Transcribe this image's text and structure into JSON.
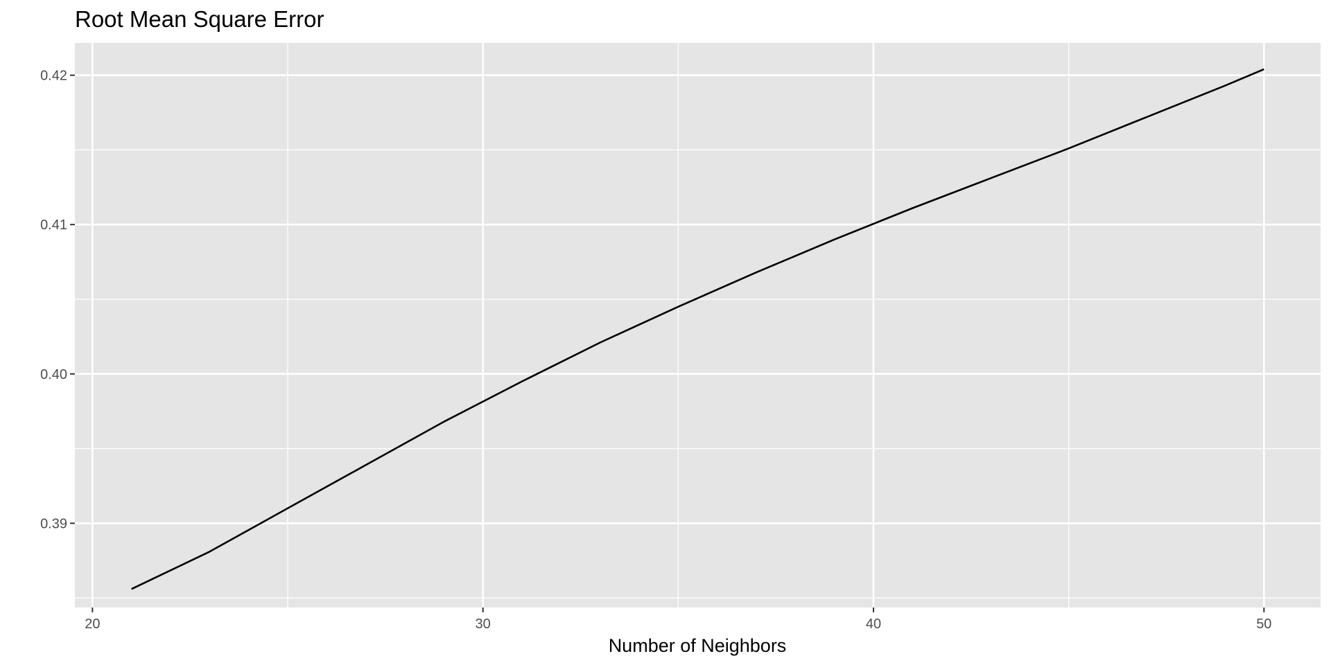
{
  "chart_data": {
    "type": "line",
    "title": "Root Mean Square Error",
    "xlabel": "Number of Neighbors",
    "ylabel": "",
    "x_ticks": [
      20,
      30,
      40,
      50
    ],
    "x_tick_labels": [
      "20",
      "30",
      "40",
      "50"
    ],
    "y_ticks": [
      0.39,
      0.4,
      0.41,
      0.42
    ],
    "y_tick_labels": [
      "0.39",
      "0.40",
      "0.41",
      "0.42"
    ],
    "xlim": [
      19.55,
      51.45
    ],
    "ylim": [
      0.38436,
      0.42216
    ],
    "grid": true,
    "legend": "none",
    "series": [
      {
        "color": "#000000",
        "x": [
          21,
          23,
          25,
          27,
          29,
          31,
          33,
          35,
          37,
          39,
          41,
          43,
          45,
          47,
          49,
          50
        ],
        "y": [
          0.3856,
          0.3881,
          0.391,
          0.3939,
          0.3968,
          0.3995,
          0.4021,
          0.4045,
          0.4068,
          0.409,
          0.4111,
          0.4131,
          0.4151,
          0.4172,
          0.4193,
          0.4204
        ]
      }
    ]
  }
}
